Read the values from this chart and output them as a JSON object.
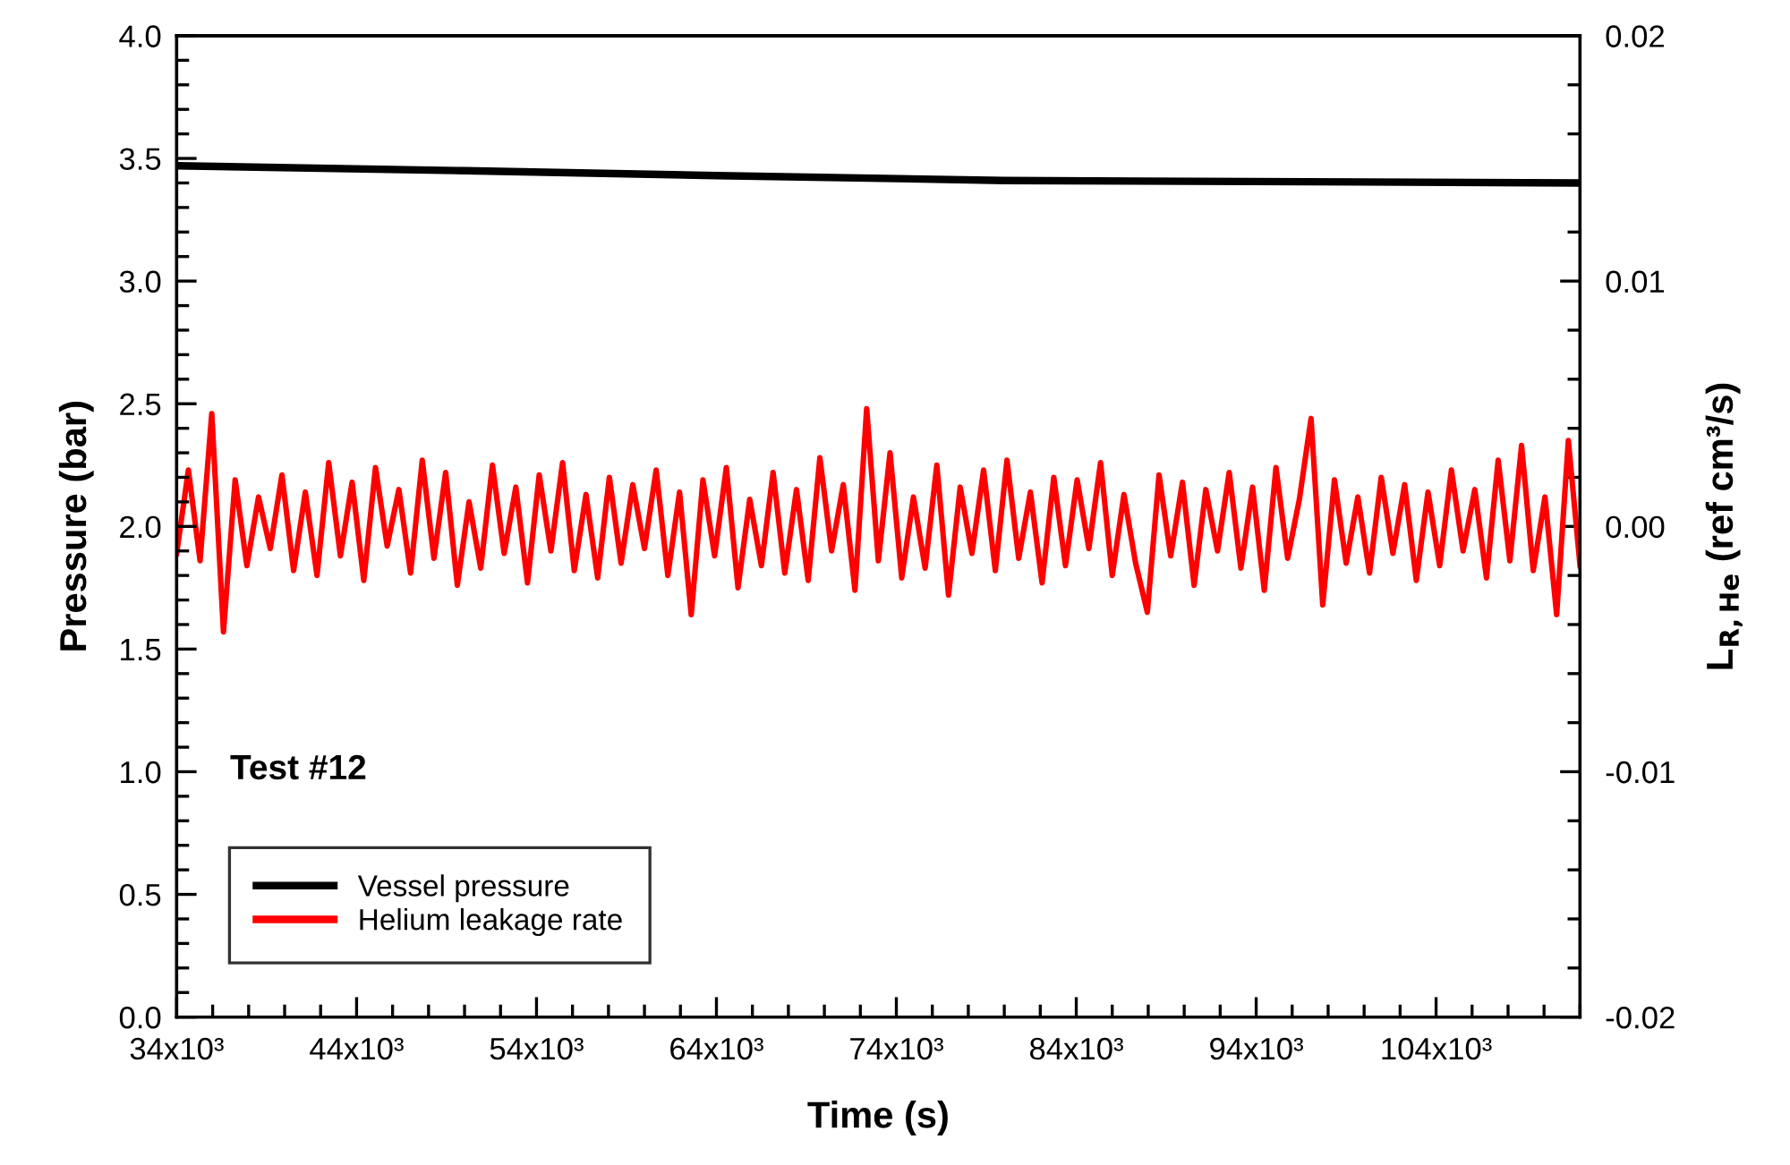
{
  "chart_data": {
    "type": "line",
    "xlabel": "Time (s)",
    "ylabel": "Pressure (bar)",
    "y2label": "L$_{R,He}$ (ref cm³/s)",
    "annotations": [
      "Test #12"
    ],
    "xlim": [
      34000,
      112000
    ],
    "xticks": [
      {
        "value": 34000,
        "label": "34x10³"
      },
      {
        "value": 44000,
        "label": "44x10³"
      },
      {
        "value": 54000,
        "label": "54x10³"
      },
      {
        "value": 64000,
        "label": "64x10³"
      },
      {
        "value": 74000,
        "label": "74x10³"
      },
      {
        "value": 84000,
        "label": "84x10³"
      },
      {
        "value": 94000,
        "label": "94x10³"
      },
      {
        "value": 104000,
        "label": "104x10³"
      }
    ],
    "ylim": [
      0.0,
      4.0
    ],
    "yticks": [
      {
        "value": 0,
        "label": "0.0"
      },
      {
        "value": 0.5,
        "label": "0.5"
      },
      {
        "value": 1,
        "label": "1.0"
      },
      {
        "value": 1.5,
        "label": "1.5"
      },
      {
        "value": 2,
        "label": "2.0"
      },
      {
        "value": 2.5,
        "label": "2.5"
      },
      {
        "value": 3,
        "label": "3.0"
      },
      {
        "value": 3.5,
        "label": "3.5"
      },
      {
        "value": 4,
        "label": "4.0"
      }
    ],
    "y2lim": [
      -0.02,
      0.02
    ],
    "y2ticks": [
      {
        "value": -0.02,
        "label": "-0.02"
      },
      {
        "value": -0.01,
        "label": "-0.01"
      },
      {
        "value": 0,
        "label": "0.00"
      },
      {
        "value": 0.01,
        "label": "0.01"
      },
      {
        "value": 0.02,
        "label": "0.02"
      }
    ],
    "grid": false,
    "legend": "bottom left",
    "line_style": "solid",
    "series": [
      {
        "name": "Vessel pressure",
        "color": "#000000",
        "x": [
          34000,
          50000,
          64000,
          80000,
          112000
        ],
        "values": [
          3.47,
          3.45,
          3.43,
          3.41,
          3.4
        ]
      },
      {
        "name": "Helium leakage rate",
        "color": "#ff0000",
        "axis": "y2",
        "x": [
          34000,
          34650,
          35300,
          35950,
          36600,
          37250,
          37900,
          38550,
          39200,
          39850,
          40500,
          41150,
          41800,
          42450,
          43100,
          43750,
          44400,
          45050,
          45700,
          46350,
          47000,
          47650,
          48300,
          48950,
          49600,
          50250,
          50900,
          51550,
          52200,
          52850,
          53500,
          54150,
          54800,
          55450,
          56100,
          56750,
          57400,
          58050,
          58700,
          59350,
          60000,
          60650,
          61300,
          61950,
          62600,
          63250,
          63900,
          64550,
          65200,
          65850,
          66500,
          67150,
          67800,
          68450,
          69100,
          69750,
          70400,
          71050,
          71700,
          72350,
          73000,
          73650,
          74300,
          74950,
          75600,
          76250,
          76900,
          77550,
          78200,
          78850,
          79500,
          80150,
          80800,
          81450,
          82100,
          82750,
          83400,
          84050,
          84700,
          85350,
          86000,
          86650,
          87300,
          87950,
          88600,
          89250,
          89900,
          90550,
          91200,
          91850,
          92500,
          93150,
          93800,
          94450,
          95100,
          95750,
          96400,
          97050,
          97700,
          98350,
          99000,
          99650,
          100300,
          100950,
          101600,
          102250,
          102900,
          103550,
          104200,
          104850,
          105500,
          106150,
          106800,
          107450,
          108100,
          108750,
          109400,
          110050,
          110700,
          111350,
          112000
        ],
        "values": [
          -0.0011,
          0.0023,
          -0.0014,
          0.0046,
          -0.0043,
          0.0019,
          -0.0016,
          0.0012,
          -0.0009,
          0.0021,
          -0.0018,
          0.0014,
          -0.002,
          0.0026,
          -0.0012,
          0.0018,
          -0.0022,
          0.0024,
          -0.0008,
          0.0015,
          -0.0019,
          0.0027,
          -0.0013,
          0.0022,
          -0.0024,
          0.001,
          -0.0017,
          0.0025,
          -0.0011,
          0.0016,
          -0.0023,
          0.0021,
          -0.001,
          0.0026,
          -0.0018,
          0.0013,
          -0.0021,
          0.002,
          -0.0015,
          0.0017,
          -0.0009,
          0.0023,
          -0.002,
          0.0014,
          -0.0036,
          0.0019,
          -0.0012,
          0.0024,
          -0.0025,
          0.0011,
          -0.0016,
          0.0022,
          -0.0019,
          0.0015,
          -0.0022,
          0.0028,
          -0.001,
          0.0017,
          -0.0026,
          0.0048,
          -0.0014,
          0.003,
          -0.0021,
          0.0012,
          -0.0017,
          0.0025,
          -0.0028,
          0.0016,
          -0.0011,
          0.0023,
          -0.0018,
          0.0027,
          -0.0013,
          0.0014,
          -0.0023,
          0.002,
          -0.0016,
          0.0019,
          -0.0009,
          0.0026,
          -0.002,
          0.0013,
          -0.0015,
          -0.0035,
          0.0021,
          -0.0012,
          0.0018,
          -0.0024,
          0.0015,
          -0.001,
          0.0022,
          -0.0017,
          0.0016,
          -0.0026,
          0.0024,
          -0.0013,
          0.0011,
          0.0044,
          -0.0032,
          0.0019,
          -0.0015,
          0.0012,
          -0.0019,
          0.002,
          -0.0011,
          0.0017,
          -0.0022,
          0.0014,
          -0.0016,
          0.0023,
          -0.001,
          0.0015,
          -0.0021,
          0.0027,
          -0.0014,
          0.0033,
          -0.0018,
          0.0012,
          -0.0036,
          0.0035,
          -0.0016
        ]
      }
    ]
  }
}
